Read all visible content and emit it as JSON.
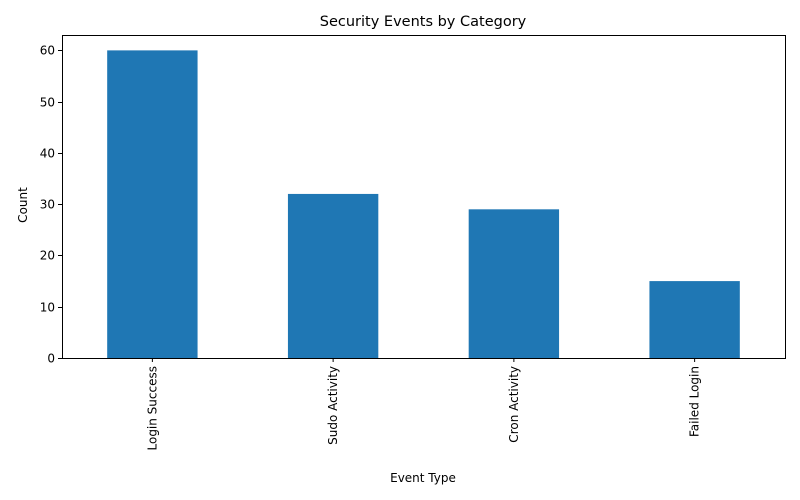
{
  "chart_data": {
    "type": "bar",
    "title": "Security Events by Category",
    "xlabel": "Event Type",
    "ylabel": "Count",
    "categories": [
      "Login Success",
      "Sudo Activity",
      "Cron Activity",
      "Failed Login"
    ],
    "values": [
      60,
      32,
      29,
      15
    ],
    "ylim": [
      0,
      63
    ],
    "yticks": [
      0,
      10,
      20,
      30,
      40,
      50,
      60
    ],
    "grid": false,
    "legend": "none",
    "bar_color": "#1f77b4"
  }
}
